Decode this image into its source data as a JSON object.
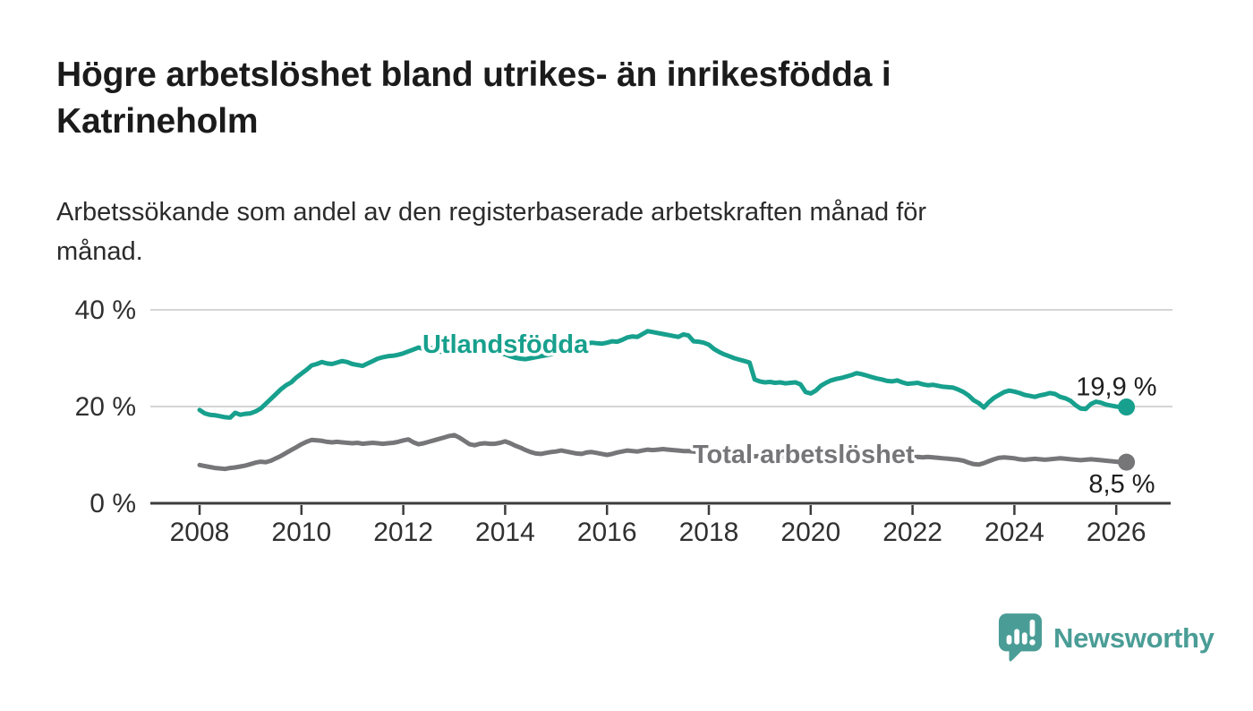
{
  "chart_data": {
    "type": "line",
    "title": "Högre arbetslöshet bland utrikes- än inrikesfödda i Katrineholm",
    "title_lines": [
      "Högre arbetslöshet bland utrikes- än inrikesfödda i",
      "Katrineholm"
    ],
    "subtitle": "Arbetssökande som andel av den registerbaserade arbetskraften månad för månad.",
    "subtitle_lines": [
      "Arbetssökande som andel av den registerbaserade arbetskraften månad för",
      "månad."
    ],
    "legend": "inline-series-labels",
    "grid": "horizontal",
    "x": {
      "start": 2008.0,
      "step": 0.1,
      "end": 2026.2,
      "ticks": [
        2008,
        2010,
        2012,
        2014,
        2016,
        2018,
        2020,
        2022,
        2024,
        2026
      ],
      "tick_labels": [
        "2008",
        "2010",
        "2012",
        "2014",
        "2016",
        "2018",
        "2020",
        "2022",
        "2024",
        "2026"
      ]
    },
    "y": {
      "lim": [
        0,
        43
      ],
      "ticks": [
        0,
        20,
        40
      ],
      "tick_labels": [
        "0 %",
        "20 %",
        "40 %"
      ],
      "unit": "%"
    },
    "series": [
      {
        "name": "Utlandsfödda",
        "color": "#17A08D",
        "end_label": "19,9 %",
        "end_value": 19.9,
        "values": [
          19.3,
          18.6,
          18.3,
          18.2,
          18.0,
          17.8,
          17.7,
          18.7,
          18.3,
          18.5,
          18.6,
          19.0,
          19.6,
          20.6,
          21.6,
          22.6,
          23.6,
          24.4,
          25.0,
          26.0,
          26.8,
          27.6,
          28.5,
          28.8,
          29.2,
          28.9,
          28.8,
          29.1,
          29.4,
          29.2,
          28.8,
          28.6,
          28.4,
          28.9,
          29.4,
          29.9,
          30.2,
          30.4,
          30.5,
          30.7,
          31.0,
          31.4,
          31.8,
          32.2,
          31.9,
          32.3,
          31.8,
          31.4,
          31.2,
          31.5,
          31.8,
          32.0,
          32.1,
          31.9,
          31.7,
          31.5,
          31.3,
          31.2,
          31.1,
          31.0,
          30.8,
          30.4,
          30.1,
          29.9,
          29.8,
          30.0,
          30.2,
          30.4,
          30.6,
          30.8,
          31.0,
          31.3,
          31.6,
          32.0,
          32.4,
          32.7,
          33.0,
          33.2,
          33.1,
          33.0,
          33.2,
          33.5,
          33.4,
          33.8,
          34.3,
          34.5,
          34.4,
          35.0,
          35.6,
          35.4,
          35.2,
          35.0,
          34.8,
          34.6,
          34.4,
          34.9,
          34.7,
          33.5,
          33.4,
          33.2,
          32.8,
          31.9,
          31.3,
          30.8,
          30.4,
          30.0,
          29.7,
          29.4,
          29.1,
          25.6,
          25.2,
          25.0,
          25.1,
          24.9,
          25.0,
          24.8,
          24.9,
          25.0,
          24.6,
          23.0,
          22.7,
          23.3,
          24.3,
          24.9,
          25.4,
          25.7,
          25.9,
          26.2,
          26.5,
          26.9,
          26.7,
          26.4,
          26.1,
          25.8,
          25.6,
          25.3,
          25.2,
          25.4,
          25.0,
          24.7,
          24.8,
          24.9,
          24.6,
          24.4,
          24.5,
          24.3,
          24.1,
          24.0,
          23.9,
          23.5,
          23.0,
          22.3,
          21.3,
          20.7,
          19.8,
          20.9,
          21.8,
          22.4,
          23.0,
          23.3,
          23.1,
          22.8,
          22.4,
          22.2,
          22.0,
          22.3,
          22.5,
          22.8,
          22.6,
          22.0,
          21.7,
          21.2,
          20.3,
          19.6,
          19.5,
          20.5,
          21.0,
          20.8,
          20.4,
          20.2,
          20.0,
          19.9,
          19.9
        ]
      },
      {
        "name": "Total arbetslöshet",
        "color": "#767679",
        "end_label": "8,5 %",
        "end_value": 8.5,
        "values": [
          7.9,
          7.7,
          7.5,
          7.3,
          7.2,
          7.1,
          7.3,
          7.4,
          7.6,
          7.8,
          8.1,
          8.4,
          8.6,
          8.5,
          8.8,
          9.3,
          9.8,
          10.4,
          11.0,
          11.6,
          12.2,
          12.7,
          13.1,
          13.0,
          12.9,
          12.7,
          12.6,
          12.7,
          12.6,
          12.5,
          12.4,
          12.5,
          12.3,
          12.4,
          12.5,
          12.4,
          12.3,
          12.4,
          12.5,
          12.7,
          13.0,
          13.2,
          12.6,
          12.2,
          12.4,
          12.7,
          13.0,
          13.3,
          13.6,
          13.9,
          14.1,
          13.6,
          12.9,
          12.2,
          12.0,
          12.3,
          12.4,
          12.3,
          12.3,
          12.5,
          12.8,
          12.4,
          11.9,
          11.5,
          11.0,
          10.6,
          10.3,
          10.2,
          10.4,
          10.6,
          10.7,
          10.9,
          10.7,
          10.5,
          10.3,
          10.2,
          10.5,
          10.6,
          10.4,
          10.2,
          10.0,
          10.2,
          10.5,
          10.7,
          10.9,
          10.8,
          10.7,
          10.9,
          11.1,
          11.0,
          11.1,
          11.2,
          11.1,
          11.0,
          10.9,
          10.8,
          10.8,
          10.7,
          10.6,
          10.5,
          10.5,
          10.4,
          10.3,
          10.2,
          10.1,
          10.0,
          9.9,
          9.9,
          9.8,
          9.7,
          9.8,
          9.7,
          9.6,
          9.5,
          9.6,
          9.5,
          9.4,
          9.5,
          9.4,
          9.5,
          9.6,
          9.8,
          10.1,
          10.4,
          10.6,
          10.7,
          10.6,
          10.5,
          10.4,
          10.3,
          10.2,
          10.1,
          10.0,
          9.9,
          9.8,
          9.8,
          9.7,
          9.7,
          9.6,
          9.6,
          9.5,
          9.6,
          9.5,
          9.6,
          9.5,
          9.4,
          9.3,
          9.2,
          9.1,
          9.0,
          8.8,
          8.4,
          8.1,
          8.0,
          8.3,
          8.7,
          9.1,
          9.4,
          9.5,
          9.4,
          9.3,
          9.1,
          9.0,
          9.1,
          9.2,
          9.1,
          9.0,
          9.1,
          9.2,
          9.3,
          9.2,
          9.1,
          9.0,
          8.9,
          9.0,
          9.1,
          9.0,
          8.9,
          8.8,
          8.7,
          8.6,
          8.5,
          8.5
        ]
      }
    ],
    "colors": {
      "axis": "#3c3c3c",
      "gridline": "#d5d5d5",
      "tick_text": "#303030",
      "annotation_text": "#1e1e1e"
    }
  },
  "branding": {
    "name": "Newsworthy",
    "color": "#4A9D96",
    "icon": "chart-speech-bubble-icon"
  }
}
